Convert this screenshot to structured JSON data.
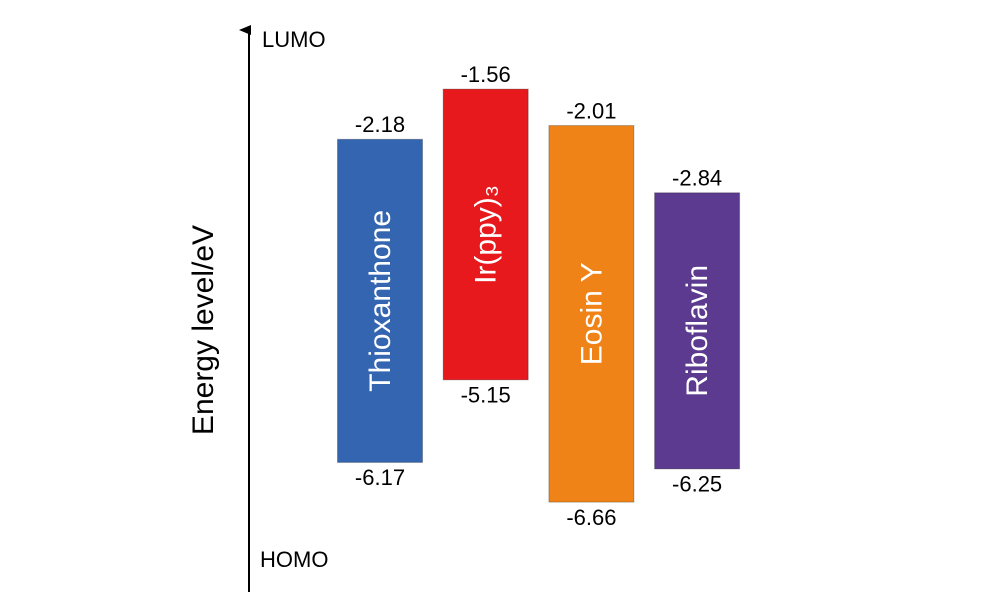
{
  "chart_data": {
    "type": "floating-bar",
    "y_label": "Energy level/eV",
    "top_label": "LUMO",
    "bottom_label": "HOMO",
    "categories": [
      "Thioxanthone",
      "Ir(ppy)₃",
      "Eosin Y",
      "Riboflavin"
    ],
    "lumo": [
      -2.18,
      -1.56,
      -2.01,
      -2.84
    ],
    "homo": [
      -6.17,
      -5.15,
      -6.66,
      -6.25
    ],
    "colors": [
      "#3465b0",
      "#e8191c",
      "#ef8318",
      "#5b3a8f"
    ],
    "ylim": [
      -7.77,
      -0.83
    ]
  }
}
